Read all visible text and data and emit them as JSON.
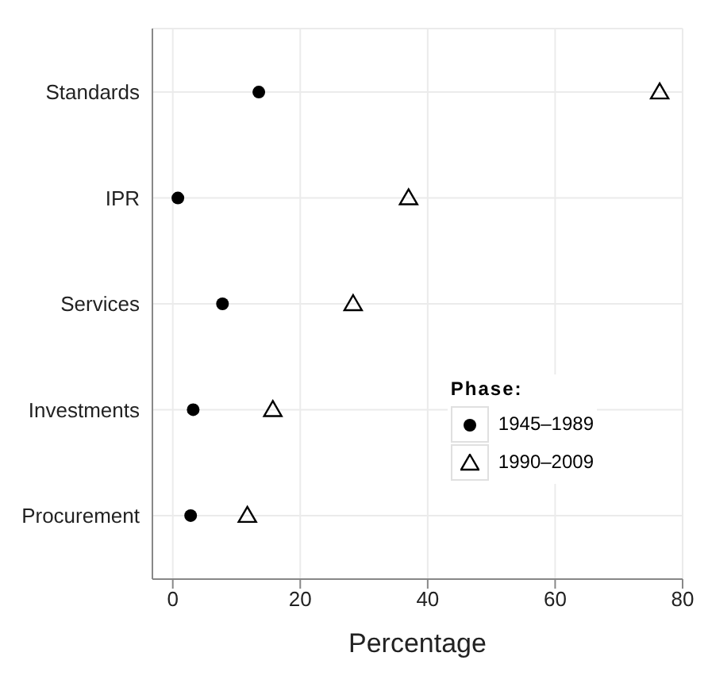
{
  "chart_data": {
    "type": "scatter",
    "orientation": "horizontal",
    "xlabel": "Percentage",
    "legend_title": "Phase:",
    "categories": [
      "Standards",
      "IPR",
      "Services",
      "Investments",
      "Procurement"
    ],
    "series": [
      {
        "name": "1945–1989",
        "color": "#000000",
        "marker": "circle",
        "values": [
          13.5,
          0.8,
          7.8,
          3.2,
          2.8
        ]
      },
      {
        "name": "1990–2009",
        "color": "#000000",
        "marker": "triangle",
        "values": [
          76.4,
          37,
          28.3,
          15.7,
          11.7
        ]
      }
    ],
    "xlim": [
      -3.2,
      80
    ],
    "xticks": [
      0,
      20,
      40,
      60,
      80
    ],
    "grid": true,
    "legend": "right"
  }
}
